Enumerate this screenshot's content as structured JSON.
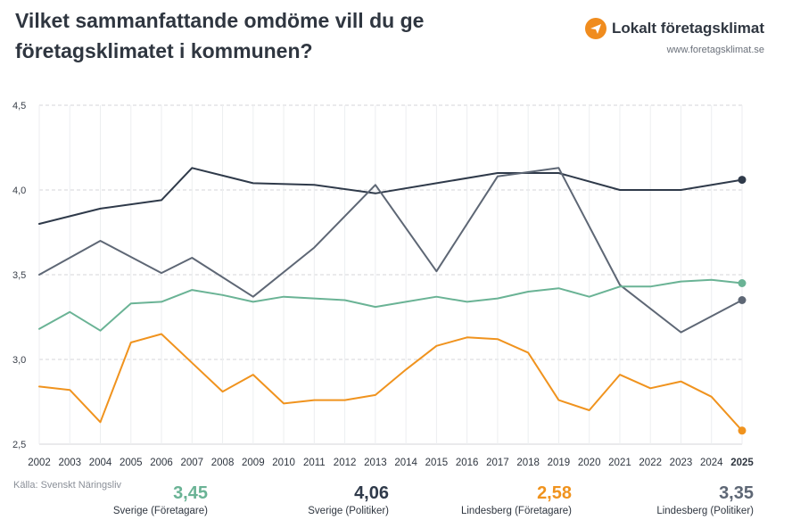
{
  "header": {
    "title": "Vilket sammanfattande omdöme vill du ge företagsklimatet i kommunen?",
    "brand_name": "Lokalt företagsklimat",
    "brand_url": "www.foretagsklimat.se",
    "brand_icon": "plane-icon"
  },
  "source": "Källa: Svenskt Näringsliv",
  "summary": [
    {
      "value": "3,45",
      "label": "Sverige (Företagare)",
      "color": "#6ab395"
    },
    {
      "value": "4,06",
      "label": "Sverige (Politiker)",
      "color": "#2f3a4a"
    },
    {
      "value": "2,58",
      "label": "Lindesberg (Företagare)",
      "color": "#f0931e"
    },
    {
      "value": "3,35",
      "label": "Lindesberg (Politiker)",
      "color": "#5e6775"
    }
  ],
  "chart_data": {
    "type": "line",
    "x": [
      "2002",
      "2003",
      "2004",
      "2005",
      "2006",
      "2007",
      "2008",
      "2009",
      "2010",
      "2011",
      "2012",
      "2013",
      "2014",
      "2015",
      "2016",
      "2017",
      "2018",
      "2019",
      "2020",
      "2021",
      "2022",
      "2023",
      "2024",
      "2025"
    ],
    "ylim": [
      2.5,
      4.5
    ],
    "yticks": [
      "2,5",
      "3,0",
      "3,5",
      "4,0",
      "4,5"
    ],
    "ytick_values": [
      2.5,
      3.0,
      3.5,
      4.0,
      4.5
    ],
    "grid": true,
    "series": [
      {
        "name": "Sverige (Politiker)",
        "color": "#2f3a4a",
        "x": [
          2002,
          2004,
          2006,
          2007,
          2009,
          2011,
          2013,
          2015,
          2017,
          2019,
          2021,
          2023,
          2025
        ],
        "values": [
          3.8,
          3.89,
          3.94,
          4.13,
          4.04,
          4.03,
          3.98,
          4.04,
          4.1,
          4.1,
          4.0,
          4.0,
          4.06
        ]
      },
      {
        "name": "Lindesberg (Politiker)",
        "color": "#5e6775",
        "x": [
          2002,
          2004,
          2006,
          2007,
          2009,
          2011,
          2013,
          2015,
          2017,
          2019,
          2021,
          2023,
          2025
        ],
        "values": [
          3.5,
          3.7,
          3.51,
          3.6,
          3.37,
          3.66,
          4.03,
          3.52,
          4.08,
          4.13,
          3.44,
          3.16,
          3.35
        ]
      },
      {
        "name": "Sverige (Företagare)",
        "color": "#6ab395",
        "x": [
          2002,
          2003,
          2004,
          2005,
          2006,
          2007,
          2008,
          2009,
          2010,
          2011,
          2012,
          2013,
          2014,
          2015,
          2016,
          2017,
          2018,
          2019,
          2020,
          2021,
          2022,
          2023,
          2024,
          2025
        ],
        "values": [
          3.18,
          3.28,
          3.17,
          3.33,
          3.34,
          3.41,
          3.38,
          3.34,
          3.37,
          3.36,
          3.35,
          3.31,
          3.34,
          3.37,
          3.34,
          3.36,
          3.4,
          3.42,
          3.37,
          3.43,
          3.43,
          3.46,
          3.47,
          3.45
        ]
      },
      {
        "name": "Lindesberg (Företagare)",
        "color": "#f0931e",
        "x": [
          2002,
          2003,
          2004,
          2005,
          2006,
          2007,
          2008,
          2009,
          2010,
          2011,
          2012,
          2013,
          2014,
          2015,
          2016,
          2017,
          2018,
          2019,
          2020,
          2021,
          2022,
          2023,
          2024,
          2025
        ],
        "values": [
          2.84,
          2.82,
          2.63,
          3.1,
          3.15,
          2.98,
          2.81,
          2.91,
          2.74,
          2.76,
          2.76,
          2.79,
          2.94,
          3.08,
          3.13,
          3.12,
          3.04,
          2.76,
          2.7,
          2.91,
          2.83,
          2.87,
          2.78,
          2.58
        ]
      }
    ]
  }
}
